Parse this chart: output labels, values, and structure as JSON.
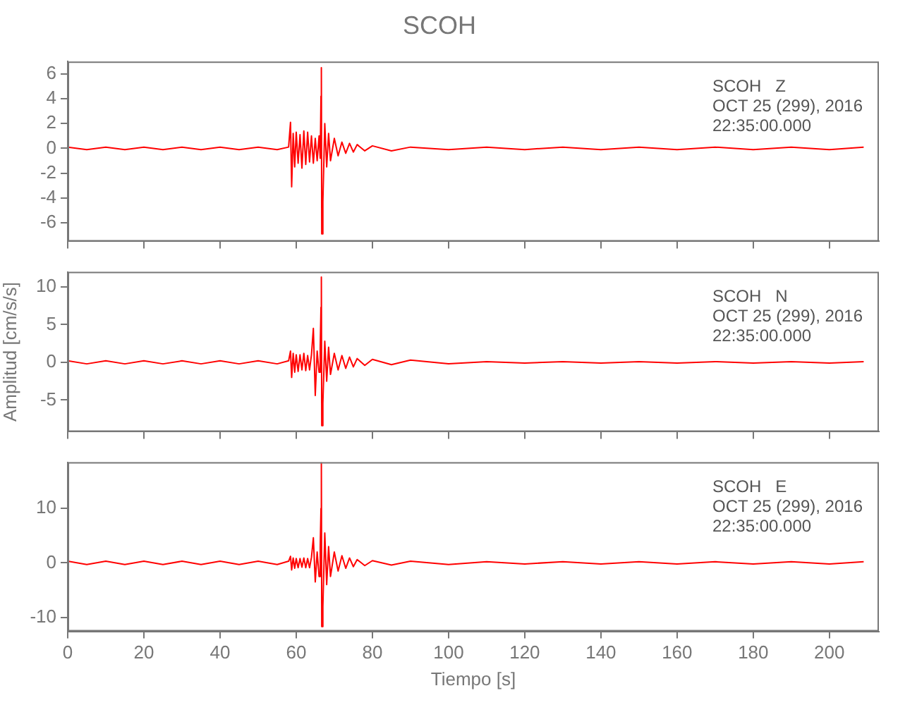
{
  "chart_data": [
    {
      "type": "line",
      "title": "SCOH",
      "annotations": [
        "SCOH   Z",
        "OCT 25 (299), 2016",
        "22:35:00.000"
      ],
      "tick_labels": "y",
      "x": [
        0,
        5,
        10,
        15,
        20,
        25,
        30,
        35,
        40,
        45,
        50,
        55,
        58,
        58.5,
        58.8,
        59.2,
        59.6,
        60,
        60.5,
        61,
        61.5,
        62,
        62.5,
        63,
        63.5,
        64,
        64.5,
        65,
        65.5,
        66,
        66.3,
        66.5,
        66.6,
        66.7,
        67,
        67.5,
        68,
        68.5,
        69,
        70,
        71,
        72,
        73,
        74,
        75,
        76,
        78,
        80,
        85,
        90,
        100,
        110,
        120,
        130,
        140,
        150,
        160,
        170,
        180,
        190,
        200,
        209
      ],
      "series": [
        {
          "color": "#ff0000",
          "values": [
            0.1,
            -0.1,
            0.1,
            -0.1,
            0.1,
            -0.1,
            0.1,
            -0.1,
            0.1,
            -0.1,
            0.1,
            -0.1,
            0.1,
            2.1,
            -3.1,
            1.2,
            -1.5,
            1.3,
            -1.2,
            1.1,
            -1.6,
            1.4,
            -1.3,
            1.3,
            -1.1,
            1.0,
            -1.2,
            0.8,
            -1.0,
            1.0,
            -0.8,
            4.2,
            6.5,
            -6.9,
            -4.3,
            2.0,
            -1.5,
            1.2,
            -1.0,
            0.8,
            -0.6,
            0.5,
            -0.4,
            0.4,
            -0.3,
            0.3,
            -0.2,
            0.2,
            -0.2,
            0.1,
            -0.1,
            0.1,
            -0.1,
            0.1,
            -0.1,
            0.1,
            -0.1,
            0.1,
            -0.1,
            0.1,
            -0.1,
            0.1
          ]
        }
      ],
      "xlim": [
        0,
        213
      ],
      "xticks": [
        0,
        20,
        40,
        60,
        80,
        100,
        120,
        140,
        160,
        180,
        200
      ],
      "ylim": [
        -7.5,
        7
      ],
      "yticks": [
        -6,
        -4,
        -2,
        0,
        2,
        4,
        6
      ]
    },
    {
      "type": "line",
      "ylabel": "Amplitud [cm/s/s]",
      "annotations": [
        "SCOH   N",
        "OCT 25 (299), 2016",
        "22:35:00.000"
      ],
      "tick_labels": "y",
      "x": [
        0,
        5,
        10,
        15,
        20,
        25,
        30,
        35,
        40,
        45,
        50,
        55,
        58,
        58.5,
        58.8,
        59.2,
        59.6,
        60,
        60.5,
        61,
        61.5,
        62,
        62.5,
        63,
        63.5,
        64,
        64.5,
        65,
        65.5,
        66,
        66.3,
        66.5,
        66.6,
        66.7,
        67,
        67.5,
        68,
        68.5,
        69,
        70,
        71,
        72,
        73,
        74,
        75,
        76,
        78,
        80,
        85,
        90,
        100,
        110,
        120,
        130,
        140,
        150,
        160,
        170,
        180,
        190,
        200,
        209
      ],
      "series": [
        {
          "color": "#ff0000",
          "values": [
            0.2,
            -0.2,
            0.2,
            -0.2,
            0.2,
            -0.2,
            0.2,
            -0.2,
            0.2,
            -0.2,
            0.2,
            -0.2,
            0.2,
            1.5,
            -2.0,
            1.2,
            -1.3,
            1.0,
            -1.2,
            1.0,
            -1.0,
            1.2,
            -1.1,
            0.9,
            -1.0,
            1.0,
            4.5,
            -4.4,
            1.5,
            -1.3,
            2.0,
            7.3,
            11.3,
            -8.4,
            -5.4,
            2.8,
            -2.5,
            2.0,
            -1.6,
            1.2,
            -1.0,
            0.9,
            -0.8,
            0.7,
            -0.6,
            0.5,
            -0.4,
            0.4,
            -0.3,
            0.3,
            -0.2,
            0.1,
            -0.1,
            0.1,
            -0.1,
            0.1,
            -0.1,
            0.1,
            -0.1,
            0.1,
            -0.1,
            0.1
          ]
        }
      ],
      "xlim": [
        0,
        213
      ],
      "xticks": [
        0,
        20,
        40,
        60,
        80,
        100,
        120,
        140,
        160,
        180,
        200
      ],
      "ylim": [
        -9.2,
        12
      ],
      "yticks": [
        -5,
        0,
        5,
        10
      ]
    },
    {
      "type": "line",
      "xlabel": "Tiempo [s]",
      "annotations": [
        "SCOH   E",
        "OCT 25 (299), 2016",
        "22:35:00.000"
      ],
      "x": [
        0,
        5,
        10,
        15,
        20,
        25,
        30,
        35,
        40,
        45,
        50,
        55,
        58,
        58.5,
        58.8,
        59.2,
        59.6,
        60,
        60.5,
        61,
        61.5,
        62,
        62.5,
        63,
        63.5,
        64,
        64.5,
        65,
        65.5,
        66,
        66.3,
        66.5,
        66.6,
        66.7,
        67,
        67.5,
        68,
        68.5,
        69,
        70,
        71,
        72,
        73,
        74,
        75,
        76,
        78,
        80,
        85,
        90,
        100,
        110,
        120,
        130,
        140,
        150,
        160,
        170,
        180,
        190,
        200,
        209
      ],
      "series": [
        {
          "color": "#ff0000",
          "values": [
            0.3,
            -0.3,
            0.3,
            -0.3,
            0.3,
            -0.3,
            0.3,
            -0.3,
            0.3,
            -0.3,
            0.3,
            -0.3,
            0.3,
            1.2,
            -1.3,
            0.9,
            -1.0,
            0.8,
            -0.9,
            0.8,
            -0.8,
            0.9,
            -0.9,
            0.8,
            -0.9,
            1.0,
            4.6,
            -3.5,
            2.0,
            -2.5,
            3.0,
            10.0,
            18.4,
            -11.7,
            -8.0,
            5.5,
            -4.0,
            3.0,
            -2.5,
            2.0,
            -1.5,
            1.3,
            -1.0,
            0.9,
            -0.7,
            0.6,
            -0.5,
            0.4,
            -0.4,
            0.3,
            -0.3,
            0.2,
            -0.2,
            0.2,
            -0.2,
            0.2,
            -0.2,
            0.2,
            -0.2,
            0.2,
            -0.2,
            0.2
          ]
        }
      ],
      "xlim": [
        0,
        213
      ],
      "xticks": [
        0,
        20,
        40,
        60,
        80,
        100,
        120,
        140,
        160,
        180,
        200
      ],
      "ylim": [
        -12.6,
        18.5
      ],
      "yticks": [
        -10,
        0,
        10
      ]
    }
  ]
}
